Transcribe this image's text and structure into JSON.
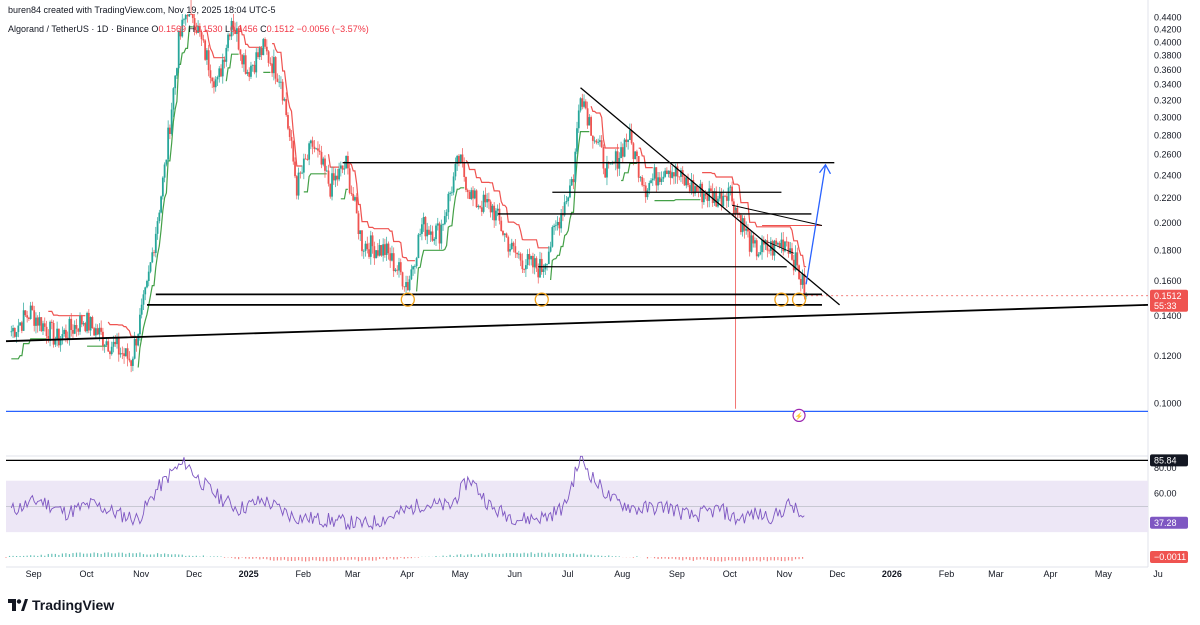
{
  "header": {
    "credit": "buren84 created with TradingView.com, Nov 19, 2025 18:04 UTC-5",
    "symbol": "Algorand / TetherUS · 1D · Binance",
    "o_label": "O",
    "o_value": "0.1569",
    "h_label": "H",
    "h_value": "0.1530",
    "l_label": "L",
    "l_value": "0.1456",
    "c_label": "C",
    "c_value": "0.1512",
    "change": "−0.0056 (−3.57%)"
  },
  "branding": {
    "logo_text": "TradingView"
  },
  "colors": {
    "up": "#26a69a",
    "down": "#ef5350",
    "resistance": "#ef5350",
    "support": "#43a047",
    "rsi": "#7e57c2",
    "rsi_band": "#ede7f6",
    "projection": "#2962ff",
    "circle": "#f2a31b"
  },
  "chart_data": [
    {
      "type": "line",
      "panel": "price",
      "ylim": [
        0.08,
        0.44
      ],
      "scale": "log",
      "y_ticks": [
        "0.4400",
        "0.4200",
        "0.4000",
        "0.3800",
        "0.3600",
        "0.3400",
        "0.3200",
        "0.3000",
        "0.2800",
        "0.2600",
        "0.2400",
        "0.2200",
        "0.2000",
        "0.1800",
        "0.1600",
        "0.1400",
        "0.1200",
        "0.1000"
      ],
      "x_ticks": [
        "Sep",
        "Oct",
        "Nov",
        "Dec",
        "2025",
        "Feb",
        "Mar",
        "Apr",
        "May",
        "Jun",
        "Jul",
        "Aug",
        "Sep",
        "Oct",
        "Nov",
        "Dec",
        "2026",
        "Feb",
        "Mar",
        "Apr",
        "May",
        "Ju"
      ],
      "series": [
        {
          "name": "ALGOUSDT",
          "x": [
            "2024-08-25",
            "2024-09-05",
            "2024-09-20",
            "2024-10-05",
            "2024-10-20",
            "2024-11-01",
            "2024-11-10",
            "2024-11-20",
            "2024-11-28",
            "2024-12-04",
            "2024-12-12",
            "2024-12-20",
            "2024-12-28",
            "2025-01-06",
            "2025-01-15",
            "2025-01-25",
            "2025-02-03",
            "2025-02-12",
            "2025-02-22",
            "2025-03-03",
            "2025-03-12",
            "2025-03-25",
            "2025-04-07",
            "2025-04-15",
            "2025-04-25",
            "2025-05-06",
            "2025-05-14",
            "2025-05-25",
            "2025-06-05",
            "2025-06-15",
            "2025-06-22",
            "2025-07-01",
            "2025-07-10",
            "2025-07-14",
            "2025-07-20",
            "2025-07-30",
            "2025-08-10",
            "2025-08-20",
            "2025-09-01",
            "2025-09-10",
            "2025-09-20",
            "2025-10-01",
            "2025-10-06",
            "2025-10-10",
            "2025-10-20",
            "2025-11-01",
            "2025-11-08",
            "2025-11-15",
            "2025-11-19"
          ],
          "y": [
            0.132,
            0.142,
            0.128,
            0.138,
            0.126,
            0.118,
            0.155,
            0.245,
            0.4,
            0.47,
            0.39,
            0.34,
            0.44,
            0.36,
            0.39,
            0.35,
            0.23,
            0.27,
            0.23,
            0.25,
            0.185,
            0.18,
            0.158,
            0.198,
            0.193,
            0.255,
            0.218,
            0.212,
            0.18,
            0.17,
            0.168,
            0.2,
            0.24,
            0.335,
            0.29,
            0.24,
            0.28,
            0.23,
            0.25,
            0.235,
            0.225,
            0.22,
            0.23,
            0.212,
            0.18,
            0.182,
            0.188,
            0.165,
            0.1512
          ]
        }
      ],
      "annotations": {
        "last_price": "0.1512",
        "countdown": "55:33",
        "resistance_levels": [
          0.252,
          0.225,
          0.207,
          0.169,
          0.152,
          0.146
        ],
        "blue_level": 0.097,
        "projection_target": 0.25
      }
    },
    {
      "type": "line",
      "panel": "rsi",
      "ylim": [
        20,
        90
      ],
      "y_ticks": [
        "80.00",
        "60.00"
      ],
      "series": [
        {
          "name": "RSI",
          "x": [
            "2024-08-25",
            "2024-09-10",
            "2024-09-25",
            "2024-10-10",
            "2024-10-25",
            "2024-11-05",
            "2024-11-15",
            "2024-11-25",
            "2024-12-02",
            "2024-12-10",
            "2024-12-20",
            "2025-01-01",
            "2025-01-15",
            "2025-02-01",
            "2025-02-15",
            "2025-03-01",
            "2025-03-15",
            "2025-04-01",
            "2025-04-15",
            "2025-05-01",
            "2025-05-12",
            "2025-05-25",
            "2025-06-10",
            "2025-06-25",
            "2025-07-05",
            "2025-07-14",
            "2025-07-22",
            "2025-08-01",
            "2025-08-15",
            "2025-09-01",
            "2025-09-15",
            "2025-10-01",
            "2025-10-10",
            "2025-10-20",
            "2025-11-01",
            "2025-11-10",
            "2025-11-19"
          ],
          "y": [
            47,
            55,
            45,
            52,
            44,
            40,
            62,
            78,
            84,
            70,
            58,
            48,
            55,
            42,
            40,
            38,
            36,
            44,
            52,
            50,
            72,
            48,
            40,
            42,
            50,
            88,
            70,
            55,
            48,
            50,
            42,
            48,
            40,
            44,
            42,
            52,
            37.28
          ]
        }
      ],
      "annotations": {
        "max_label": "85.84",
        "current_label": "37.28"
      }
    },
    {
      "type": "bar",
      "panel": "macd",
      "annotations": {
        "current_label": "−0.0011"
      }
    }
  ]
}
